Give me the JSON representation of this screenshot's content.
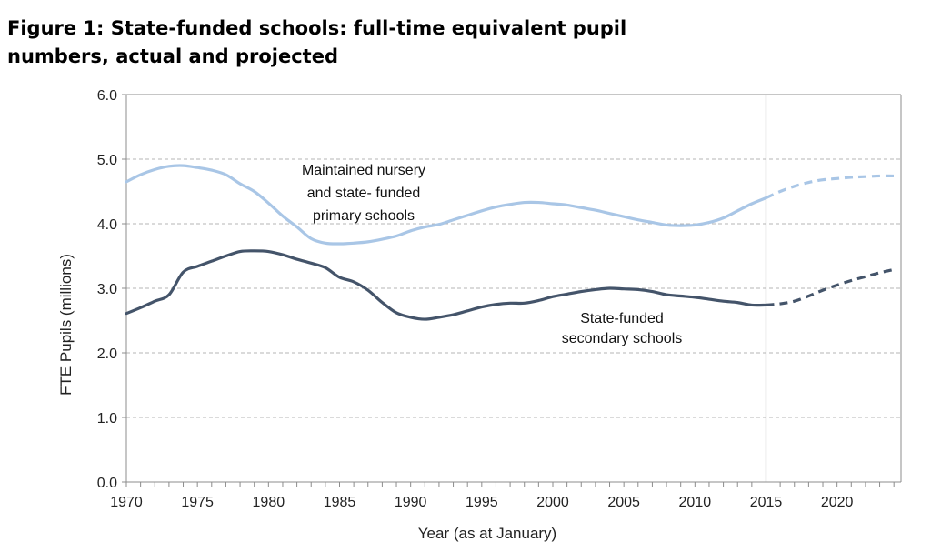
{
  "chart_data": {
    "type": "line",
    "title": "Figure 1: State-funded schools: full-time equivalent pupil numbers, actual and projected",
    "xlabel": "Year (as at January)",
    "ylabel": "FTE Pupils (millions)",
    "xlim": [
      1970,
      2024.5
    ],
    "ylim": [
      0,
      6
    ],
    "x_ticks": [
      "1970",
      "1975",
      "1980",
      "1985",
      "1990",
      "1995",
      "2000",
      "2005",
      "2010",
      "2015",
      "2020"
    ],
    "y_ticks": [
      "0.0",
      "1.0",
      "2.0",
      "3.0",
      "4.0",
      "5.0",
      "6.0"
    ],
    "grid": "horizontal dashed",
    "divider_year": 2015,
    "annotations": [
      {
        "lines": [
          "Maintained nursery",
          "and state- funded",
          "primary schools"
        ],
        "series": 0
      },
      {
        "lines": [
          "State-funded",
          "secondary schools"
        ],
        "series": 1
      }
    ],
    "series": [
      {
        "name": "Maintained nursery and state- funded primary schools",
        "color": "#a9c6e6",
        "actual": {
          "x": [
            1970,
            1971,
            1972,
            1973,
            1974,
            1975,
            1976,
            1977,
            1978,
            1979,
            1980,
            1981,
            1982,
            1983,
            1984,
            1985,
            1986,
            1987,
            1988,
            1989,
            1990,
            1991,
            1992,
            1993,
            1994,
            1995,
            1996,
            1997,
            1998,
            1999,
            2000,
            2001,
            2002,
            2003,
            2004,
            2005,
            2006,
            2007,
            2008,
            2009,
            2010,
            2011,
            2012,
            2013,
            2014,
            2015
          ],
          "y": [
            4.65,
            4.76,
            4.84,
            4.89,
            4.9,
            4.87,
            4.83,
            4.76,
            4.62,
            4.5,
            4.32,
            4.12,
            3.95,
            3.77,
            3.7,
            3.69,
            3.7,
            3.72,
            3.76,
            3.81,
            3.89,
            3.95,
            3.99,
            4.06,
            4.13,
            4.2,
            4.26,
            4.3,
            4.33,
            4.33,
            4.31,
            4.29,
            4.25,
            4.21,
            4.16,
            4.11,
            4.06,
            4.02,
            3.98,
            3.97,
            3.98,
            4.02,
            4.09,
            4.2,
            4.31,
            4.4
          ]
        },
        "projected": {
          "x": [
            2015,
            2016,
            2017,
            2018,
            2019,
            2020,
            2021,
            2022,
            2023,
            2024
          ],
          "y": [
            4.4,
            4.5,
            4.58,
            4.64,
            4.68,
            4.7,
            4.72,
            4.73,
            4.74,
            4.74
          ]
        }
      },
      {
        "name": "State-funded secondary schools",
        "color": "#44546a",
        "actual": {
          "x": [
            1970,
            1971,
            1972,
            1973,
            1974,
            1975,
            1976,
            1977,
            1978,
            1979,
            1980,
            1981,
            1982,
            1983,
            1984,
            1985,
            1986,
            1987,
            1988,
            1989,
            1990,
            1991,
            1992,
            1993,
            1994,
            1995,
            1996,
            1997,
            1998,
            1999,
            2000,
            2001,
            2002,
            2003,
            2004,
            2005,
            2006,
            2007,
            2008,
            2009,
            2010,
            2011,
            2012,
            2013,
            2014,
            2015
          ],
          "y": [
            2.61,
            2.7,
            2.8,
            2.9,
            3.25,
            3.34,
            3.42,
            3.5,
            3.57,
            3.58,
            3.57,
            3.52,
            3.45,
            3.39,
            3.32,
            3.17,
            3.1,
            2.97,
            2.78,
            2.62,
            2.55,
            2.52,
            2.55,
            2.59,
            2.65,
            2.71,
            2.75,
            2.77,
            2.77,
            2.81,
            2.87,
            2.91,
            2.95,
            2.98,
            3.0,
            2.99,
            2.98,
            2.95,
            2.9,
            2.88,
            2.86,
            2.83,
            2.8,
            2.78,
            2.74,
            2.74
          ]
        },
        "projected": {
          "x": [
            2015,
            2016,
            2017,
            2018,
            2019,
            2020,
            2021,
            2022,
            2023,
            2024
          ],
          "y": [
            2.74,
            2.76,
            2.8,
            2.88,
            2.97,
            3.05,
            3.12,
            3.18,
            3.24,
            3.29
          ]
        }
      }
    ]
  }
}
